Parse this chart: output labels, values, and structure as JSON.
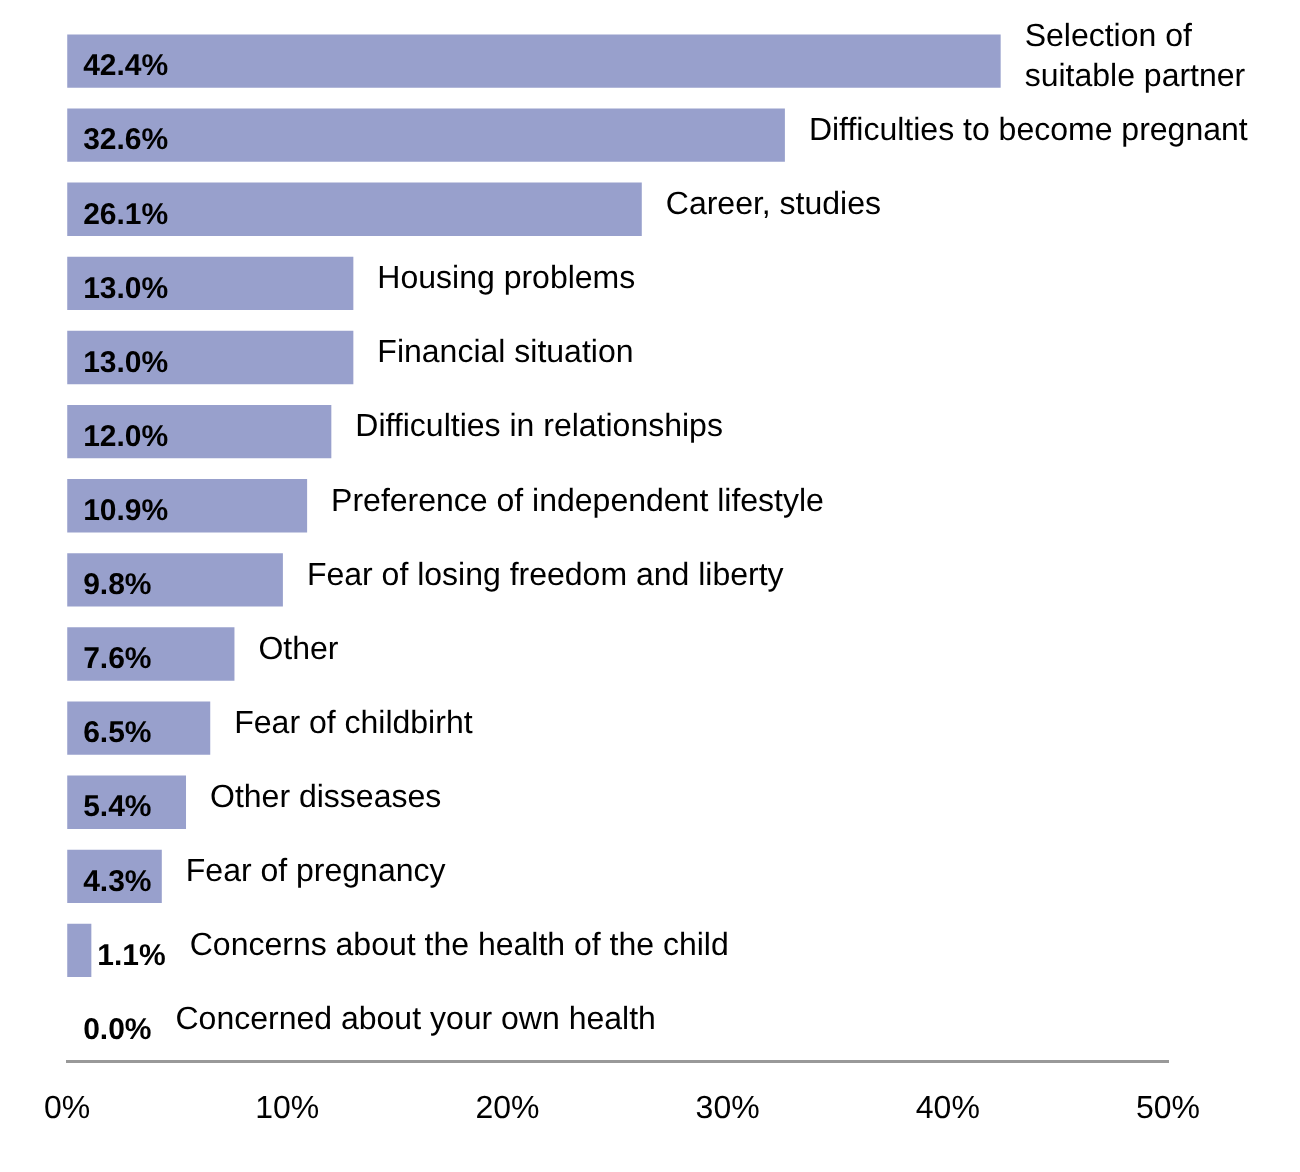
{
  "chart_data": {
    "type": "bar",
    "orientation": "horizontal",
    "categories": [
      "Selection of suitable partner",
      "Difficulties to become pregnant",
      "Career, studies",
      "Housing problems",
      "Financial situation",
      "Difficulties in relationships",
      "Preference of independent lifestyle",
      "Fear of losing freedom and liberty",
      "Other",
      "Fear of childbirht",
      "Other disseases",
      "Fear of pregnancy",
      "Concerns about the health of the child",
      "Concerned about your own health"
    ],
    "values": [
      42.4,
      32.6,
      26.1,
      13.0,
      13.0,
      12.0,
      10.9,
      9.8,
      7.6,
      6.5,
      5.4,
      4.3,
      1.1,
      0.0
    ],
    "value_labels": [
      "42.4%",
      "32.6%",
      "26.1%",
      "13.0%",
      "13.0%",
      "12.0%",
      "10.9%",
      "9.8%",
      "7.6%",
      "6.5%",
      "5.4%",
      "4.3%",
      "1.1%",
      "0.0%"
    ],
    "color": "#98a0cc",
    "xlim": [
      0,
      50
    ],
    "xticks": [
      {
        "value": 0,
        "label": "0%"
      },
      {
        "value": 10,
        "label": "10%"
      },
      {
        "value": 20,
        "label": "20%"
      },
      {
        "value": 30,
        "label": "30%"
      },
      {
        "value": 40,
        "label": "40%"
      },
      {
        "value": 50,
        "label": "50%"
      }
    ],
    "grid": false,
    "legend": false
  }
}
